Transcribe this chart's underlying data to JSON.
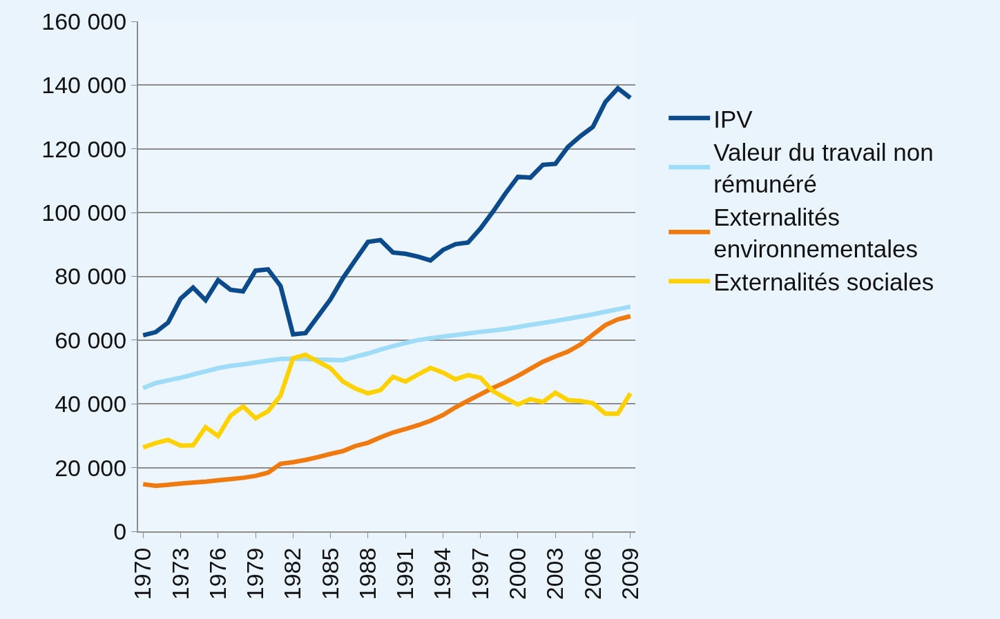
{
  "chart_data": {
    "type": "line",
    "x": [
      1970,
      1971,
      1972,
      1973,
      1974,
      1975,
      1976,
      1977,
      1978,
      1979,
      1980,
      1981,
      1982,
      1983,
      1984,
      1985,
      1986,
      1987,
      1988,
      1989,
      1990,
      1991,
      1992,
      1993,
      1994,
      1995,
      1996,
      1997,
      1998,
      1999,
      2000,
      2001,
      2002,
      2003,
      2004,
      2005,
      2006,
      2007,
      2008,
      2009
    ],
    "xlim": [
      1969.6,
      2009.4
    ],
    "xticks": [
      1970,
      1973,
      1976,
      1979,
      1982,
      1985,
      1988,
      1991,
      1994,
      1997,
      2000,
      2003,
      2006,
      2009
    ],
    "ylim": [
      0,
      160000
    ],
    "yticks": [
      {
        "value": 0,
        "label": "0"
      },
      {
        "value": 20000,
        "label": "20 000"
      },
      {
        "value": 40000,
        "label": "40 000"
      },
      {
        "value": 60000,
        "label": "60 000"
      },
      {
        "value": 80000,
        "label": "80 000"
      },
      {
        "value": 100000,
        "label": "100 000"
      },
      {
        "value": 120000,
        "label": "120 000"
      },
      {
        "value": 140000,
        "label": "140 000"
      },
      {
        "value": 160000,
        "label": "160 000"
      }
    ],
    "grid": "y",
    "legend": "right",
    "marker": "none",
    "line_style": "solid",
    "series": [
      {
        "name": "IPV",
        "color": "#0b4a8b",
        "values": [
          61500,
          62500,
          65500,
          73000,
          76500,
          72500,
          78800,
          75800,
          75300,
          81800,
          82200,
          77000,
          61800,
          62200,
          67500,
          72800,
          79500,
          85200,
          90800,
          91400,
          87500,
          87100,
          86200,
          85000,
          88300,
          90100,
          90600,
          95000,
          100300,
          106000,
          111200,
          111000,
          115000,
          115300,
          120600,
          124000,
          126900,
          134700,
          139000,
          136000
        ]
      },
      {
        "name": "Valeur du travail non rémunéré",
        "color": "#9edcf8",
        "values": [
          45000,
          46500,
          47400,
          48200,
          49200,
          50200,
          51200,
          51900,
          52400,
          53000,
          53600,
          54100,
          54200,
          54100,
          53900,
          53800,
          53700,
          54800,
          55800,
          57000,
          58100,
          59100,
          60000,
          60600,
          61100,
          61600,
          62100,
          62600,
          63000,
          63500,
          64100,
          64800,
          65400,
          66000,
          66700,
          67400,
          68100,
          68900,
          69700,
          70500
        ]
      },
      {
        "name": "Externalités environnementales",
        "color": "#ef7a10",
        "values": [
          14800,
          14300,
          14600,
          15000,
          15300,
          15600,
          16000,
          16400,
          16800,
          17400,
          18400,
          21200,
          21700,
          22400,
          23300,
          24300,
          25200,
          26800,
          27800,
          29500,
          31000,
          32100,
          33300,
          34700,
          36500,
          38900,
          41000,
          43000,
          45000,
          46800,
          48800,
          51000,
          53200,
          54900,
          56400,
          58600,
          61700,
          64700,
          66500,
          67500
        ]
      },
      {
        "name": "Externalités sociales",
        "color": "#fed200",
        "values": [
          26300,
          27700,
          28700,
          26900,
          27000,
          32700,
          29900,
          36300,
          39200,
          35500,
          37700,
          42600,
          54300,
          55400,
          53300,
          51200,
          47000,
          44800,
          43300,
          44300,
          48500,
          47000,
          49200,
          51300,
          49800,
          47700,
          49000,
          48200,
          44000,
          41800,
          39800,
          41500,
          40600,
          43500,
          41200,
          40900,
          40200,
          36900,
          36900,
          43300
        ]
      }
    ]
  }
}
